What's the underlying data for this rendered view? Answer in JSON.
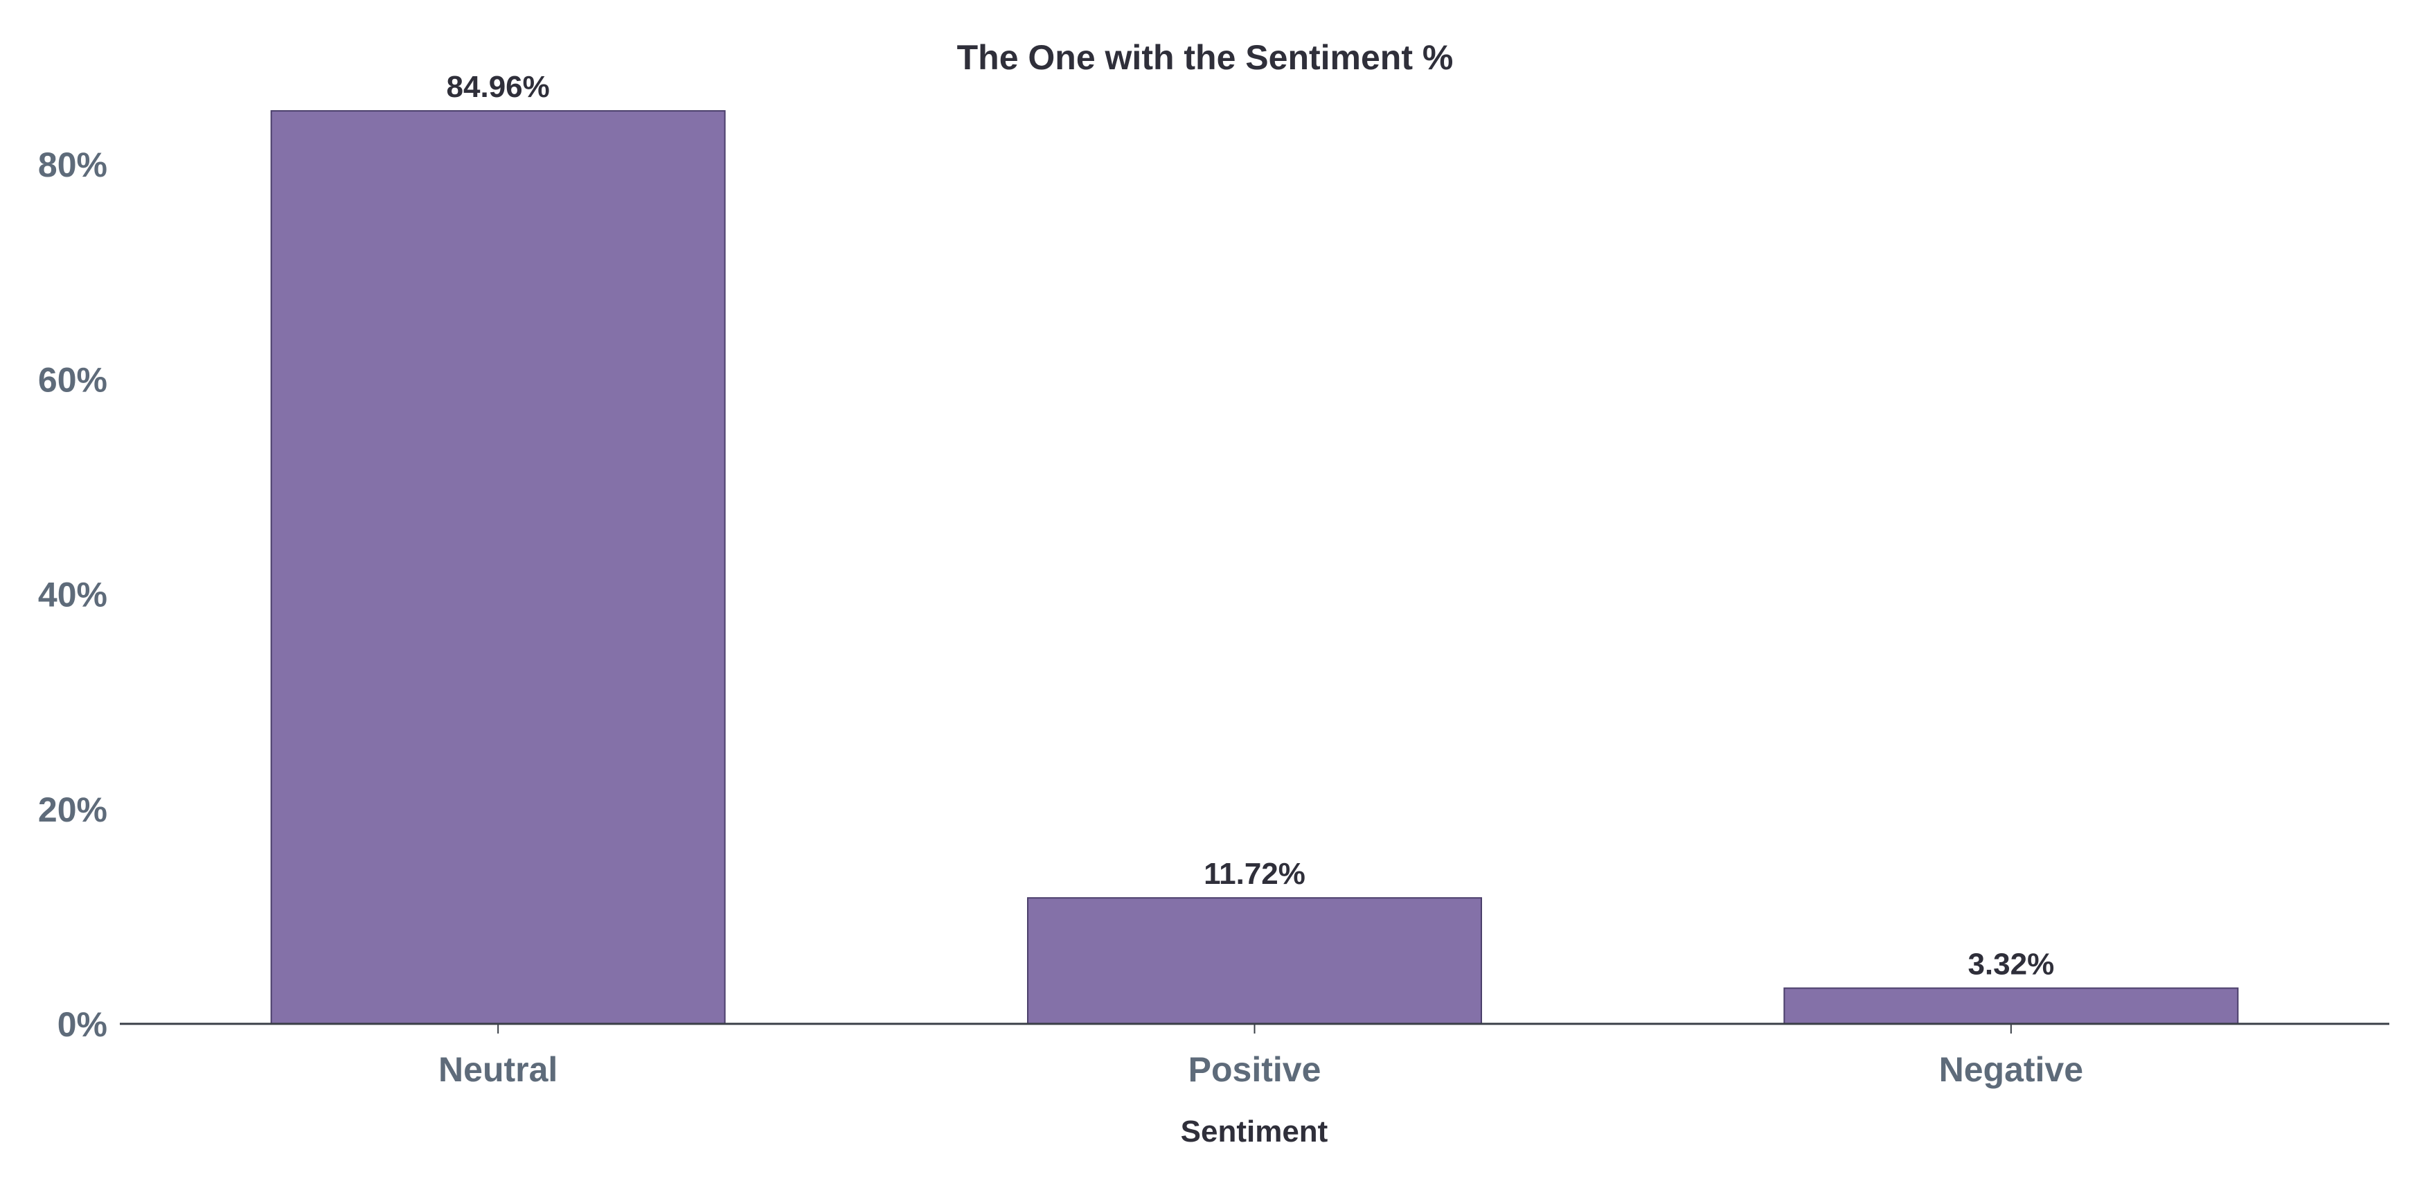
{
  "chart_data": {
    "type": "bar",
    "title": "The One with the Sentiment %",
    "xlabel": "Sentiment",
    "ylabel": "",
    "categories": [
      "Neutral",
      "Positive",
      "Negative"
    ],
    "values": [
      84.96,
      11.72,
      3.32
    ],
    "data_labels": [
      "84.96%",
      "11.72%",
      "3.32%"
    ],
    "ylim": [
      0,
      88
    ],
    "yticks": [
      0,
      20,
      40,
      60,
      80
    ],
    "ytick_labels": [
      "0%",
      "20%",
      "40%",
      "60%",
      "80%"
    ],
    "grid": false,
    "legend": "none",
    "colors": {
      "bar_fill": "#8471a8",
      "bar_edge": "#4b3f6b",
      "axis": "#3a3f47"
    }
  }
}
